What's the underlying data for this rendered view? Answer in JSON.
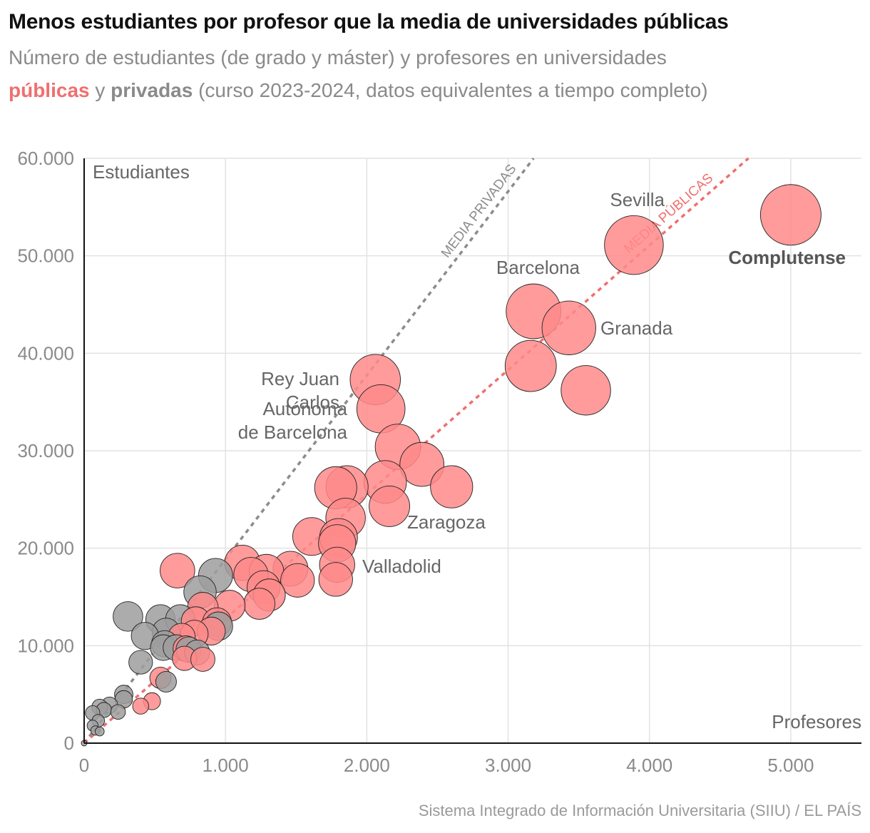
{
  "header": {
    "title": "Menos estudiantes por profesor que la media de universidades públicas",
    "subtitle_line1": "Número de estudiantes (de grado y máster) y profesores en universidades",
    "subtitle_public": "públicas",
    "subtitle_and": " y ",
    "subtitle_private": "privadas",
    "subtitle_rest": " (curso 2023-2024, datos equivalentes a tiempo completo)"
  },
  "footer": {
    "source": "Sistema Integrado de Información Universitaria (SIIU) / EL PAÍS"
  },
  "colors": {
    "public": "#ff8a8a",
    "private": "#9e9e9e",
    "public_line": "#f06f6f",
    "private_line": "#8c8c8c",
    "grid": "#e2e2e2",
    "text": "#666666"
  },
  "chart_data": {
    "type": "scatter",
    "xlabel": "Profesores",
    "ylabel": "Estudiantes",
    "xlim": [
      0,
      5500
    ],
    "ylim": [
      0,
      60000
    ],
    "x_ticks": [
      {
        "value": 0,
        "label": "0"
      },
      {
        "value": 1000,
        "label": "1.000"
      },
      {
        "value": 2000,
        "label": "2.000"
      },
      {
        "value": 3000,
        "label": "3.000"
      },
      {
        "value": 4000,
        "label": "4.000"
      },
      {
        "value": 5000,
        "label": "5.000"
      }
    ],
    "y_ticks": [
      {
        "value": 0,
        "label": "0"
      },
      {
        "value": 10000,
        "label": "10.000"
      },
      {
        "value": 20000,
        "label": "20.000"
      },
      {
        "value": 30000,
        "label": "30.000"
      },
      {
        "value": 40000,
        "label": "40.000"
      },
      {
        "value": 50000,
        "label": "50.000"
      },
      {
        "value": 60000,
        "label": "60.000"
      }
    ],
    "grid": true,
    "bubble_size": "students",
    "reference_lines": [
      {
        "label": "MEDIA PRIVADAS",
        "group": "private",
        "x0": 0,
        "y0": 0,
        "x1": 3180,
        "y1": 60000
      },
      {
        "label": "MEDIA PÚBLICAS",
        "group": "public",
        "x0": 0,
        "y0": 0,
        "x1": 4700,
        "y1": 60000
      }
    ],
    "series": [
      {
        "name": "públicas",
        "group": "public",
        "points": [
          {
            "x": 5000,
            "y": 54200,
            "label": "Complutense"
          },
          {
            "x": 3890,
            "y": 51100,
            "label": "Sevilla"
          },
          {
            "x": 3180,
            "y": 44300,
            "label": "Barcelona"
          },
          {
            "x": 3430,
            "y": 42600,
            "label": "Granada"
          },
          {
            "x": 3160,
            "y": 38700
          },
          {
            "x": 3550,
            "y": 36200
          },
          {
            "x": 2060,
            "y": 37300,
            "label": "Rey Juan Carlos"
          },
          {
            "x": 2100,
            "y": 34300,
            "label": "Autónoma de Barcelona"
          },
          {
            "x": 2220,
            "y": 30400
          },
          {
            "x": 2390,
            "y": 28600
          },
          {
            "x": 2600,
            "y": 26300
          },
          {
            "x": 1860,
            "y": 26300
          },
          {
            "x": 1780,
            "y": 26200
          },
          {
            "x": 2130,
            "y": 26800
          },
          {
            "x": 2160,
            "y": 24300,
            "label": "Zaragoza"
          },
          {
            "x": 1850,
            "y": 23100
          },
          {
            "x": 1610,
            "y": 21200
          },
          {
            "x": 1800,
            "y": 21100
          },
          {
            "x": 1790,
            "y": 20500
          },
          {
            "x": 1790,
            "y": 18300,
            "label": "Valladolid"
          },
          {
            "x": 1780,
            "y": 16800
          },
          {
            "x": 1120,
            "y": 18500
          },
          {
            "x": 1180,
            "y": 17300
          },
          {
            "x": 1290,
            "y": 17600
          },
          {
            "x": 1460,
            "y": 17900
          },
          {
            "x": 1270,
            "y": 16000
          },
          {
            "x": 1310,
            "y": 15200
          },
          {
            "x": 1510,
            "y": 16700
          },
          {
            "x": 1030,
            "y": 14100
          },
          {
            "x": 1240,
            "y": 14300
          },
          {
            "x": 660,
            "y": 17700
          },
          {
            "x": 840,
            "y": 13900
          },
          {
            "x": 790,
            "y": 12500
          },
          {
            "x": 940,
            "y": 12400
          },
          {
            "x": 900,
            "y": 11500
          },
          {
            "x": 780,
            "y": 11200
          },
          {
            "x": 690,
            "y": 10900
          },
          {
            "x": 720,
            "y": 9700
          },
          {
            "x": 710,
            "y": 8700
          },
          {
            "x": 840,
            "y": 8600
          },
          {
            "x": 540,
            "y": 6700
          },
          {
            "x": 480,
            "y": 4300
          },
          {
            "x": 400,
            "y": 3800
          }
        ]
      },
      {
        "name": "privadas",
        "group": "private",
        "points": [
          {
            "x": 930,
            "y": 17200
          },
          {
            "x": 820,
            "y": 15500
          },
          {
            "x": 310,
            "y": 13000
          },
          {
            "x": 540,
            "y": 12700
          },
          {
            "x": 680,
            "y": 12700
          },
          {
            "x": 580,
            "y": 11400
          },
          {
            "x": 430,
            "y": 11000
          },
          {
            "x": 950,
            "y": 12000
          },
          {
            "x": 570,
            "y": 10200
          },
          {
            "x": 560,
            "y": 9800
          },
          {
            "x": 650,
            "y": 9800
          },
          {
            "x": 740,
            "y": 9600
          },
          {
            "x": 800,
            "y": 9300
          },
          {
            "x": 400,
            "y": 8300
          },
          {
            "x": 580,
            "y": 6300
          },
          {
            "x": 280,
            "y": 5000
          },
          {
            "x": 280,
            "y": 4500
          },
          {
            "x": 180,
            "y": 3900
          },
          {
            "x": 110,
            "y": 3700
          },
          {
            "x": 140,
            "y": 3400
          },
          {
            "x": 240,
            "y": 3200
          },
          {
            "x": 60,
            "y": 3100
          },
          {
            "x": 100,
            "y": 2300
          },
          {
            "x": 60,
            "y": 1800
          },
          {
            "x": 80,
            "y": 1300
          },
          {
            "x": 110,
            "y": 1200
          },
          {
            "x": 0,
            "y": 0
          }
        ]
      }
    ]
  }
}
